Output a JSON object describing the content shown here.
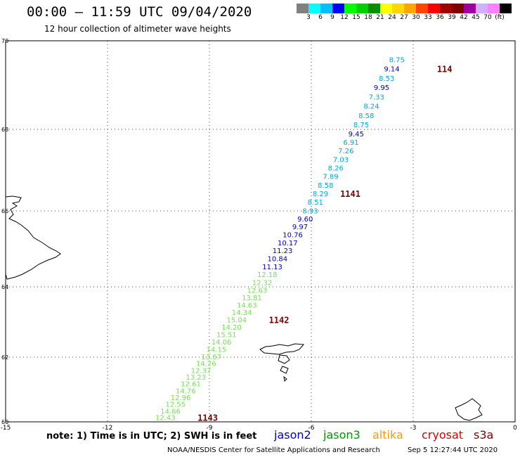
{
  "header": {
    "title": "00:00 – 11:59 UTC 09/04/2020",
    "subtitle": "12 hour collection of altimeter wave heights"
  },
  "legend": {
    "colors": [
      "#808080",
      "#00ffff",
      "#00bfff",
      "#0000ff",
      "#00ff00",
      "#00d000",
      "#009000",
      "#ffff00",
      "#ffd700",
      "#ffa500",
      "#ff4500",
      "#ff0000",
      "#a00000",
      "#800000",
      "#a000a0",
      "#d0b0ff",
      "#ff80ff",
      "#000000"
    ],
    "labels": [
      "3",
      "6",
      "9",
      "12",
      "15",
      "18",
      "21",
      "24",
      "27",
      "30",
      "33",
      "36",
      "39",
      "42",
      "45",
      "70",
      "(ft)"
    ]
  },
  "axes": {
    "lon_ticks": [
      "-15",
      "-12",
      "-9",
      "-6",
      "-3",
      "0"
    ],
    "lat_ticks": [
      "60",
      "62",
      "64",
      "66",
      "68",
      "70"
    ]
  },
  "tracks": [
    {
      "satellite": "jason3",
      "color": "#77e055",
      "points": [
        {
          "lon": -10.0,
          "lat": 60.14,
          "v": "12.43"
        },
        {
          "lon": -9.85,
          "lat": 60.34,
          "v": "14.66"
        },
        {
          "lon": -9.7,
          "lat": 60.55,
          "v": "12.55"
        },
        {
          "lon": -9.55,
          "lat": 60.76,
          "v": "12.96"
        },
        {
          "lon": -9.4,
          "lat": 60.97,
          "v": "14.76"
        },
        {
          "lon": -9.25,
          "lat": 61.18,
          "v": "12.61"
        },
        {
          "lon": -9.1,
          "lat": 61.39,
          "v": "13.23"
        },
        {
          "lon": -8.95,
          "lat": 61.6,
          "v": "12.37"
        },
        {
          "lon": -8.8,
          "lat": 61.81,
          "v": "14.26"
        },
        {
          "lon": -8.65,
          "lat": 62.02,
          "v": "13.67"
        },
        {
          "lon": -8.5,
          "lat": 62.23,
          "v": "14.15"
        },
        {
          "lon": -8.35,
          "lat": 62.44,
          "v": "14.06"
        },
        {
          "lon": -8.2,
          "lat": 62.65,
          "v": "15.51"
        },
        {
          "lon": -8.05,
          "lat": 62.86,
          "v": "14.20"
        },
        {
          "lon": -7.9,
          "lat": 63.07,
          "v": "15.04"
        },
        {
          "lon": -7.75,
          "lat": 63.28,
          "v": "14.34"
        },
        {
          "lon": -7.6,
          "lat": 63.49,
          "v": "14.63"
        },
        {
          "lon": -7.45,
          "lat": 63.7,
          "v": "13.81"
        },
        {
          "lon": -7.3,
          "lat": 63.91,
          "v": "12.63"
        },
        {
          "lon": -7.15,
          "lat": 64.12,
          "v": "12.32"
        },
        {
          "lon": -7.0,
          "lat": 64.33,
          "v": "12.18"
        }
      ]
    },
    {
      "satellite": "jason2",
      "color": "#0000c0",
      "points": [
        {
          "lon": -6.85,
          "lat": 64.54,
          "v": "11.13"
        },
        {
          "lon": -6.7,
          "lat": 64.75,
          "v": "10.84"
        },
        {
          "lon": -6.55,
          "lat": 64.96,
          "v": "11.23"
        },
        {
          "lon": -6.4,
          "lat": 65.17,
          "v": "10.17"
        },
        {
          "lon": -6.25,
          "lat": 65.38,
          "v": "10.76"
        },
        {
          "lon": -6.1,
          "lat": 65.59,
          "v": "9.97"
        },
        {
          "lon": -5.95,
          "lat": 65.8,
          "v": "9.60"
        }
      ]
    },
    {
      "satellite": "jason3",
      "color": "#00a8d8",
      "points": [
        {
          "lon": -5.8,
          "lat": 66.01,
          "v": "8.93"
        },
        {
          "lon": -5.65,
          "lat": 66.22,
          "v": "8.51"
        },
        {
          "lon": -5.5,
          "lat": 66.43,
          "v": "8.29"
        },
        {
          "lon": -5.35,
          "lat": 66.64,
          "v": "8.58"
        },
        {
          "lon": -5.2,
          "lat": 66.85,
          "v": "7.89"
        },
        {
          "lon": -5.05,
          "lat": 67.06,
          "v": "8.26"
        },
        {
          "lon": -4.9,
          "lat": 67.27,
          "v": "7.03"
        },
        {
          "lon": -4.75,
          "lat": 67.48,
          "v": "7.26"
        },
        {
          "lon": -4.6,
          "lat": 67.69,
          "v": "6.91"
        }
      ]
    },
    {
      "satellite": "jason2",
      "color": "#0000c0",
      "points": [
        {
          "lon": -4.45,
          "lat": 67.9,
          "v": "9.45"
        }
      ]
    },
    {
      "satellite": "jason3",
      "color": "#00a8d8",
      "points": [
        {
          "lon": -4.3,
          "lat": 68.11,
          "v": "8.75"
        },
        {
          "lon": -4.15,
          "lat": 68.32,
          "v": "8.58"
        },
        {
          "lon": -4.0,
          "lat": 68.53,
          "v": "8.24"
        },
        {
          "lon": -3.85,
          "lat": 68.74,
          "v": "7.33"
        }
      ]
    },
    {
      "satellite": "jason2",
      "color": "#0000c0",
      "points": [
        {
          "lon": -3.7,
          "lat": 68.95,
          "v": "9.95"
        }
      ]
    },
    {
      "satellite": "jason3",
      "color": "#00a8d8",
      "points": [
        {
          "lon": -3.55,
          "lat": 69.16,
          "v": "8.53"
        }
      ]
    },
    {
      "satellite": "jason2",
      "color": "#0000c0",
      "points": [
        {
          "lon": -3.4,
          "lat": 69.37,
          "v": "9.14"
        }
      ]
    },
    {
      "satellite": "jason3",
      "color": "#00a8d8",
      "points": [
        {
          "lon": -3.25,
          "lat": 69.58,
          "v": "8.75"
        }
      ]
    }
  ],
  "pass_labels": [
    {
      "text": "1143",
      "lon": -9.35,
      "lat": 60.14,
      "color": "#7a0000"
    },
    {
      "text": "1142",
      "lon": -7.25,
      "lat": 63.07,
      "color": "#7a0000"
    },
    {
      "text": "1141",
      "lon": -5.15,
      "lat": 66.43,
      "color": "#7a0000"
    },
    {
      "text": "114",
      "lon": -2.3,
      "lat": 69.37,
      "color": "#7a0000"
    }
  ],
  "footer": {
    "note": "note:  1) Time is in UTC;  2) SWH is in feet",
    "missions": [
      {
        "name": "jason2",
        "color": "#0000cc"
      },
      {
        "name": "jason3",
        "color": "#009a00"
      },
      {
        "name": "altika",
        "color": "#ff9900"
      },
      {
        "name": "cryosat",
        "color": "#dd0000"
      },
      {
        "name": "s3a",
        "color": "#880000"
      }
    ],
    "credit": "NOAA/NESDIS Center for Satellite Applications and Research",
    "timestamp": "Sep  5 12:27:44 UTC 2020"
  }
}
